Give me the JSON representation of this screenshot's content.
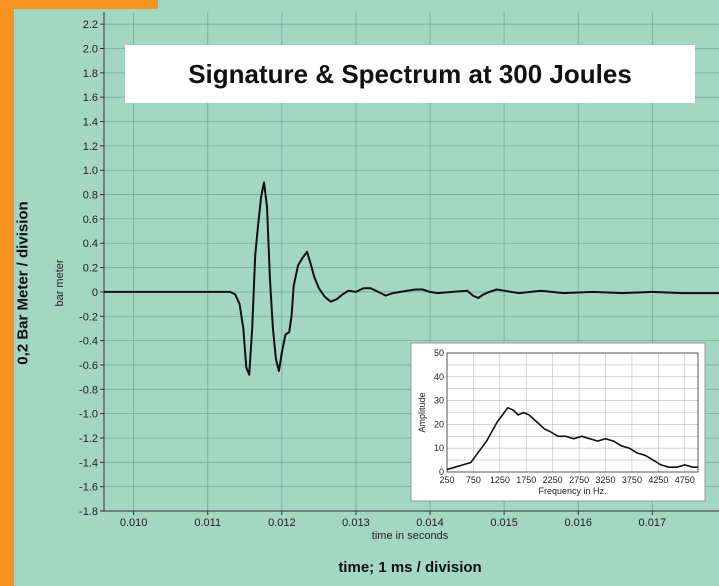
{
  "title": "Signature & Spectrum at 300 Joules",
  "outer_y_label": "0,2 Bar Meter / division",
  "outer_x_label": "time; 1 ms / division",
  "colors": {
    "plot_background": "#a3d6c3",
    "grid": "#6fae97",
    "line": "#111111",
    "accent": "#f7931e",
    "inset_background": "#ffffff"
  },
  "chart_data": [
    {
      "type": "line",
      "xlabel": "time in seconds",
      "ylabel": "bar meter",
      "xlim": [
        0.0096,
        0.0179
      ],
      "ylim": [
        -1.8,
        2.3
      ],
      "grid": true,
      "x_ticks": [
        "0.010",
        "0.011",
        "0.012",
        "0.013",
        "0.014",
        "0.015",
        "0.016",
        "0.017"
      ],
      "y_ticks": [
        "2.2",
        "2.0",
        "1.8",
        "1.6",
        "1.4",
        "1.2",
        "1.0",
        "0.8",
        "0.6",
        "0.4",
        "0.2",
        "0",
        "-0.2",
        "-0.4",
        "-0.6",
        "-0.8",
        "-1.0",
        "-1.2",
        "-1.4",
        "-1.6",
        "-1.8"
      ],
      "series": [
        {
          "x": [
            0.0096,
            0.0113,
            0.01137,
            0.01143,
            0.01148,
            0.01152,
            0.01156,
            0.0116,
            0.01164,
            0.01168,
            0.01172,
            0.01176,
            0.0118,
            0.01184,
            0.01188,
            0.01192,
            0.01196,
            0.012,
            0.01205,
            0.0121,
            0.01213,
            0.01216,
            0.01222,
            0.01228,
            0.01234,
            0.01238,
            0.01244,
            0.0125,
            0.01258,
            0.01266,
            0.01274,
            0.01282,
            0.0129,
            0.013,
            0.0131,
            0.0132,
            0.0133,
            0.0134,
            0.0135,
            0.0136,
            0.0138,
            0.0139,
            0.014,
            0.0141,
            0.0143,
            0.0145,
            0.01458,
            0.01465,
            0.01472,
            0.0148,
            0.0149,
            0.015,
            0.0152,
            0.0155,
            0.0158,
            0.0162,
            0.0166,
            0.017,
            0.0174,
            0.0179
          ],
          "y": [
            0.0,
            0.0,
            -0.02,
            -0.1,
            -0.3,
            -0.62,
            -0.68,
            -0.3,
            0.3,
            0.55,
            0.78,
            0.9,
            0.7,
            0.1,
            -0.3,
            -0.55,
            -0.65,
            -0.5,
            -0.35,
            -0.33,
            -0.2,
            0.05,
            0.22,
            0.28,
            0.33,
            0.25,
            0.12,
            0.03,
            -0.04,
            -0.08,
            -0.06,
            -0.02,
            0.01,
            0.0,
            0.03,
            0.03,
            0.0,
            -0.03,
            -0.01,
            0.0,
            0.02,
            0.02,
            0.0,
            -0.01,
            0.0,
            0.01,
            -0.03,
            -0.05,
            -0.02,
            0.0,
            0.02,
            0.01,
            -0.01,
            0.01,
            -0.01,
            0.0,
            -0.01,
            0.0,
            -0.01,
            -0.01
          ]
        }
      ]
    },
    {
      "type": "line",
      "xlabel": "Frequency in Hz.",
      "ylabel": "Amplitude",
      "xlim": [
        250,
        5000
      ],
      "ylim": [
        0,
        50
      ],
      "grid": true,
      "x_ticks": [
        "250",
        "750",
        "1250",
        "1750",
        "2250",
        "2750",
        "3250",
        "3750",
        "4250",
        "4750"
      ],
      "y_ticks": [
        "0",
        "10",
        "20",
        "30",
        "40",
        "50"
      ],
      "series": [
        {
          "x": [
            250,
            400,
            550,
            700,
            800,
            900,
            1000,
            1100,
            1200,
            1300,
            1400,
            1500,
            1600,
            1700,
            1800,
            1900,
            2000,
            2100,
            2200,
            2350,
            2500,
            2650,
            2800,
            2950,
            3100,
            3250,
            3400,
            3550,
            3700,
            3850,
            4000,
            4150,
            4300,
            4450,
            4600,
            4750,
            4900,
            5000
          ],
          "y": [
            1,
            2,
            3,
            4,
            7,
            10,
            13,
            17,
            21,
            24,
            27,
            26,
            24,
            25,
            24,
            22,
            20,
            18,
            17,
            15,
            15,
            14,
            15,
            14,
            13,
            14,
            13,
            11,
            10,
            8,
            7,
            5,
            3,
            2,
            2,
            3,
            2,
            2
          ]
        }
      ]
    }
  ]
}
